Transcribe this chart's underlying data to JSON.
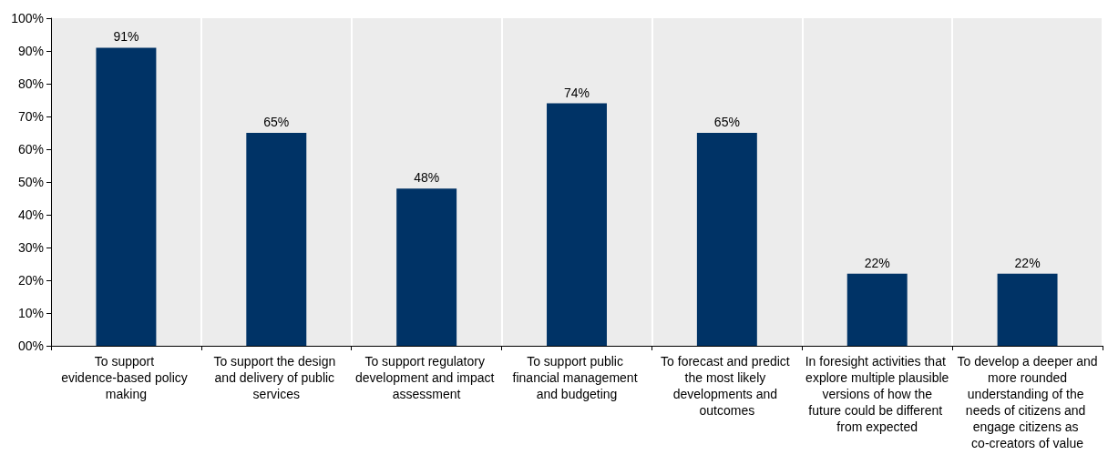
{
  "chart_data": {
    "type": "bar",
    "categories": [
      "To support evidence-based policy making",
      "To support the design and delivery of public services",
      "To support regulatory development and impact assessment",
      "To support public financial management and budgeting",
      "To forecast and predict the most likely developments and outcomes",
      "In foresight activities that explore multiple plausible versions of how the future could be different from expected",
      "To develop a deeper and more rounded understanding of the needs of citizens and engage citizens as co-creators of value"
    ],
    "values": [
      91,
      65,
      48,
      74,
      65,
      22,
      22
    ],
    "value_labels": [
      "91%",
      "65%",
      "48%",
      "74%",
      "65%",
      "22%",
      "22%"
    ],
    "color": "#003366",
    "ylim": [
      0,
      100
    ],
    "yticks": [
      {
        "value": 0,
        "label": "00%"
      },
      {
        "value": 10,
        "label": "10%"
      },
      {
        "value": 20,
        "label": "20%"
      },
      {
        "value": 30,
        "label": "30%"
      },
      {
        "value": 40,
        "label": "40%"
      },
      {
        "value": 50,
        "label": "50%"
      },
      {
        "value": 60,
        "label": "60%"
      },
      {
        "value": 70,
        "label": "70%"
      },
      {
        "value": 80,
        "label": "80%"
      },
      {
        "value": 90,
        "label": "90%"
      },
      {
        "value": 100,
        "label": "100%"
      }
    ],
    "grid": "x"
  }
}
